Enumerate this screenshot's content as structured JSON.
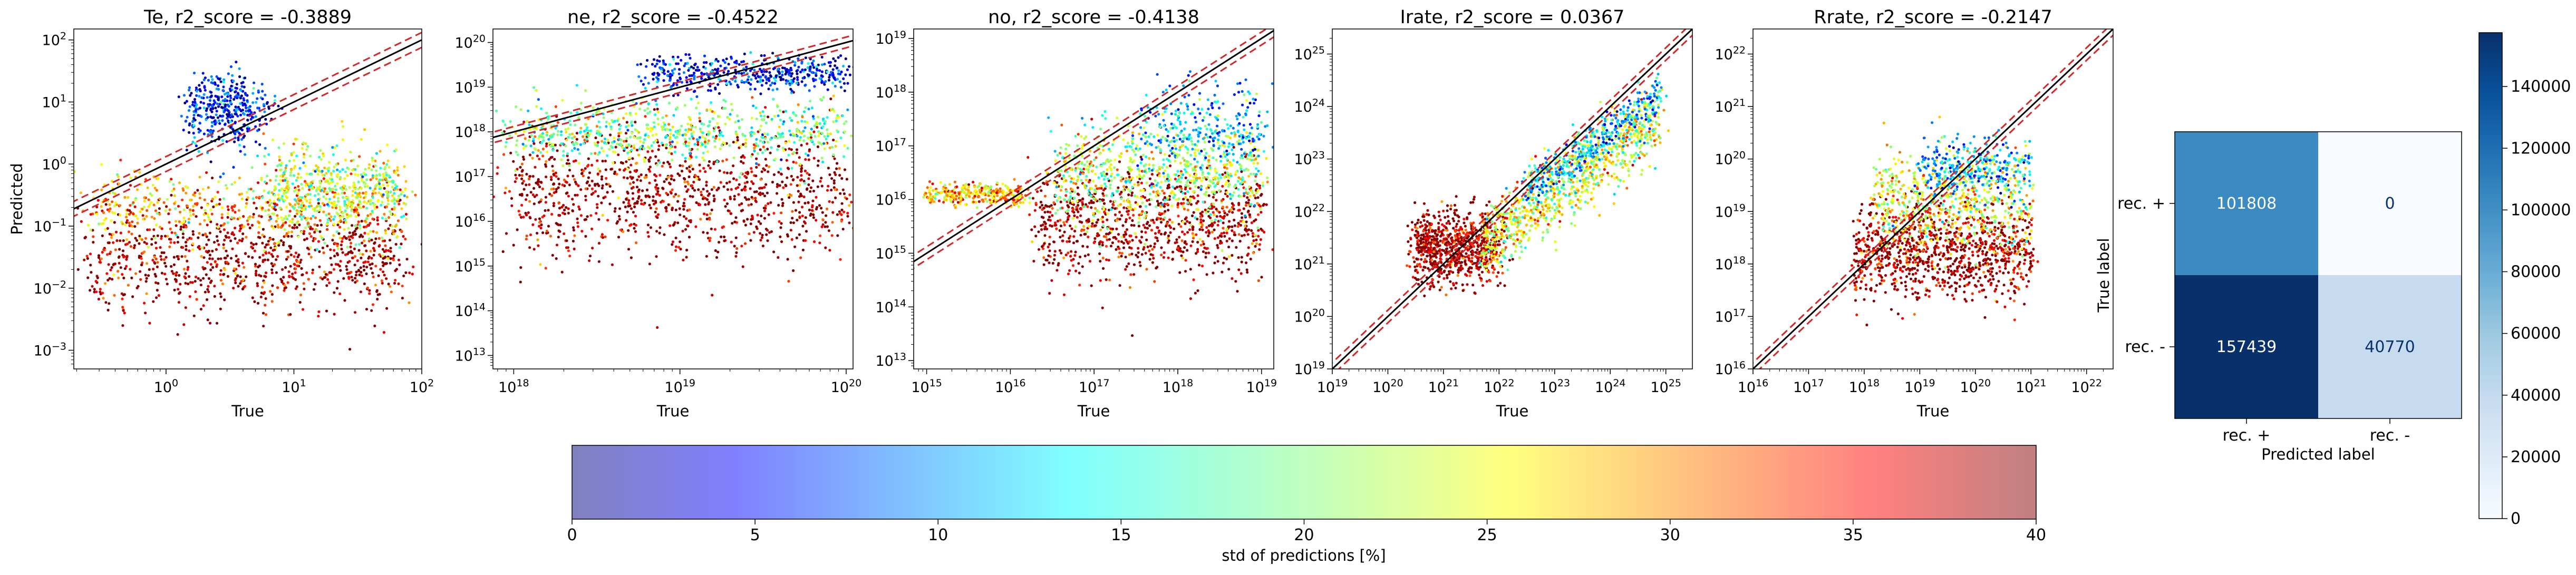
{
  "chart_data": [
    {
      "type": "scatter",
      "title": "Te, r2_score = -0.3889",
      "xlabel": "True",
      "ylabel": "Predicted",
      "xscale": "log",
      "yscale": "log",
      "xlim": [
        0.19,
        100
      ],
      "ylim": [
        0.0005,
        150
      ],
      "xticks": [
        1,
        10,
        100
      ],
      "yticks": [
        0.001,
        0.01,
        0.1,
        1,
        10,
        100
      ],
      "reference_lines": "identity (black) with dashed red offsets"
    },
    {
      "type": "scatter",
      "title": "ne, r2_score = -0.4522",
      "xlabel": "True",
      "ylabel": "",
      "xscale": "log",
      "yscale": "log",
      "xlim": [
        7.5e+17,
        1.1e+20
      ],
      "ylim": [
        5000000000000.0,
        2e+20
      ],
      "xticks": [
        1e+18,
        1e+19,
        1e+20
      ],
      "yticks": [
        10000000000000.0,
        100000000000000.0,
        1000000000000000.0,
        1e+16,
        1e+17,
        1e+18,
        1e+19,
        1e+20
      ],
      "reference_lines": "identity (black) with dashed red offsets"
    },
    {
      "type": "scatter",
      "title": "no, r2_score = -0.4138",
      "xlabel": "True",
      "ylabel": "",
      "xscale": "log",
      "yscale": "log",
      "xlim": [
        700000000000000.0,
        1.4e+19
      ],
      "ylim": [
        7000000000000.0,
        1.5e+19
      ],
      "xticks": [
        1000000000000000.0,
        1e+16,
        1e+17,
        1e+18,
        1e+19
      ],
      "yticks": [
        10000000000000.0,
        100000000000000.0,
        1000000000000000.0,
        1e+16,
        1e+17,
        1e+18,
        1e+19
      ],
      "reference_lines": "identity (black) with dashed red offsets"
    },
    {
      "type": "scatter",
      "title": "Irate, r2_score = 0.0367",
      "xlabel": "True",
      "ylabel": "",
      "xscale": "log",
      "yscale": "log",
      "xlim": [
        1e+19,
        3e+25
      ],
      "ylim": [
        1e+19,
        3e+25
      ],
      "xticks": [
        1e+19,
        1e+20,
        1e+21,
        1e+22,
        1e+23,
        1e+24,
        1e+25
      ],
      "yticks": [
        1e+19,
        1e+20,
        1e+21,
        1e+22,
        1e+23,
        1e+24,
        1e+25
      ],
      "reference_lines": "identity (black) with dashed red offsets"
    },
    {
      "type": "scatter",
      "title": "Rrate, r2_score = -0.2147",
      "xlabel": "True",
      "ylabel": "",
      "xscale": "log",
      "yscale": "log",
      "xlim": [
        1e+16,
        3e+22
      ],
      "ylim": [
        1e+16,
        3e+22
      ],
      "xticks": [
        1e+16,
        1e+17,
        1e+18,
        1e+19,
        1e+20,
        1e+21,
        1e+22
      ],
      "yticks": [
        1e+16,
        1e+17,
        1e+18,
        1e+19,
        1e+20,
        1e+21,
        1e+22
      ],
      "reference_lines": "identity (black) with dashed red offsets"
    },
    {
      "type": "heatmap",
      "title": "",
      "xlabel": "Predicted label",
      "ylabel": "True label",
      "x_categories": [
        "rec. +",
        "rec. -"
      ],
      "y_categories": [
        "rec. +",
        "rec. -"
      ],
      "values": [
        [
          101808,
          0
        ],
        [
          157439,
          40770
        ]
      ],
      "colormap": "Blues",
      "colorbar": {
        "min": 0,
        "max": 157439,
        "ticks": [
          0,
          20000,
          40000,
          60000,
          80000,
          100000,
          120000,
          140000
        ]
      }
    },
    {
      "type": "colorbar",
      "label": "std of predictions [%]",
      "colormap": "jet (alpha 0.5)",
      "range": [
        0,
        40
      ],
      "ticks": [
        0,
        5,
        10,
        15,
        20,
        25,
        30,
        35,
        40
      ]
    }
  ],
  "sup": {
    "10": "10",
    "exp": {
      "m3": "−3",
      "m2": "−2",
      "m1": "−1",
      "0": "0",
      "1": "1",
      "2": "2",
      "13": "13",
      "14": "14",
      "15": "15",
      "16": "16",
      "17": "17",
      "18": "18",
      "19": "19",
      "20": "20",
      "21": "21",
      "22": "22",
      "23": "23",
      "24": "24",
      "25": "25"
    }
  },
  "colors": {
    "identity": "#000000",
    "offset": "#d62728",
    "cm_dark": "#08306b",
    "cm_light": "#f7fbff"
  }
}
